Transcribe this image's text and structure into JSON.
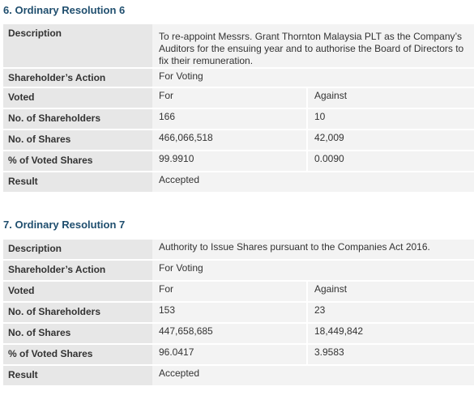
{
  "resolutions": [
    {
      "title": "6. Ordinary Resolution 6",
      "labels": {
        "description": "Description",
        "action": "Shareholder’s Action",
        "voted": "Voted",
        "num_shareholders": "No. of Shareholders",
        "num_shares": "No. of Shares",
        "pct": "% of Voted Shares",
        "result": "Result"
      },
      "description_lines": [
        "To re-appoint Messrs. Grant Thornton Malaysia PLT as the Company’s",
        "Auditors for the ensuing year and to authorise the Board of Directors to",
        "fix their remuneration."
      ],
      "action": "For Voting",
      "voted": {
        "for": "For",
        "against": "Against"
      },
      "num_shareholders": {
        "for": "166",
        "against": "10"
      },
      "num_shares": {
        "for": "466,066,518",
        "against": "42,009"
      },
      "pct": {
        "for": "99.9910",
        "against": "0.0090"
      },
      "result": "Accepted"
    },
    {
      "title": "7. Ordinary Resolution 7",
      "labels": {
        "description": "Description",
        "action": "Shareholder’s Action",
        "voted": "Voted",
        "num_shareholders": "No. of Shareholders",
        "num_shares": "No. of Shares",
        "pct": "% of Voted Shares",
        "result": "Result"
      },
      "description_lines": [
        "Authority to Issue Shares pursuant to the Companies Act 2016."
      ],
      "action": "For Voting",
      "voted": {
        "for": "For",
        "against": "Against"
      },
      "num_shareholders": {
        "for": "153",
        "against": "23"
      },
      "num_shares": {
        "for": "447,658,685",
        "against": "18,449,842"
      },
      "pct": {
        "for": "96.0417",
        "against": "3.9583"
      },
      "result": "Accepted"
    }
  ]
}
